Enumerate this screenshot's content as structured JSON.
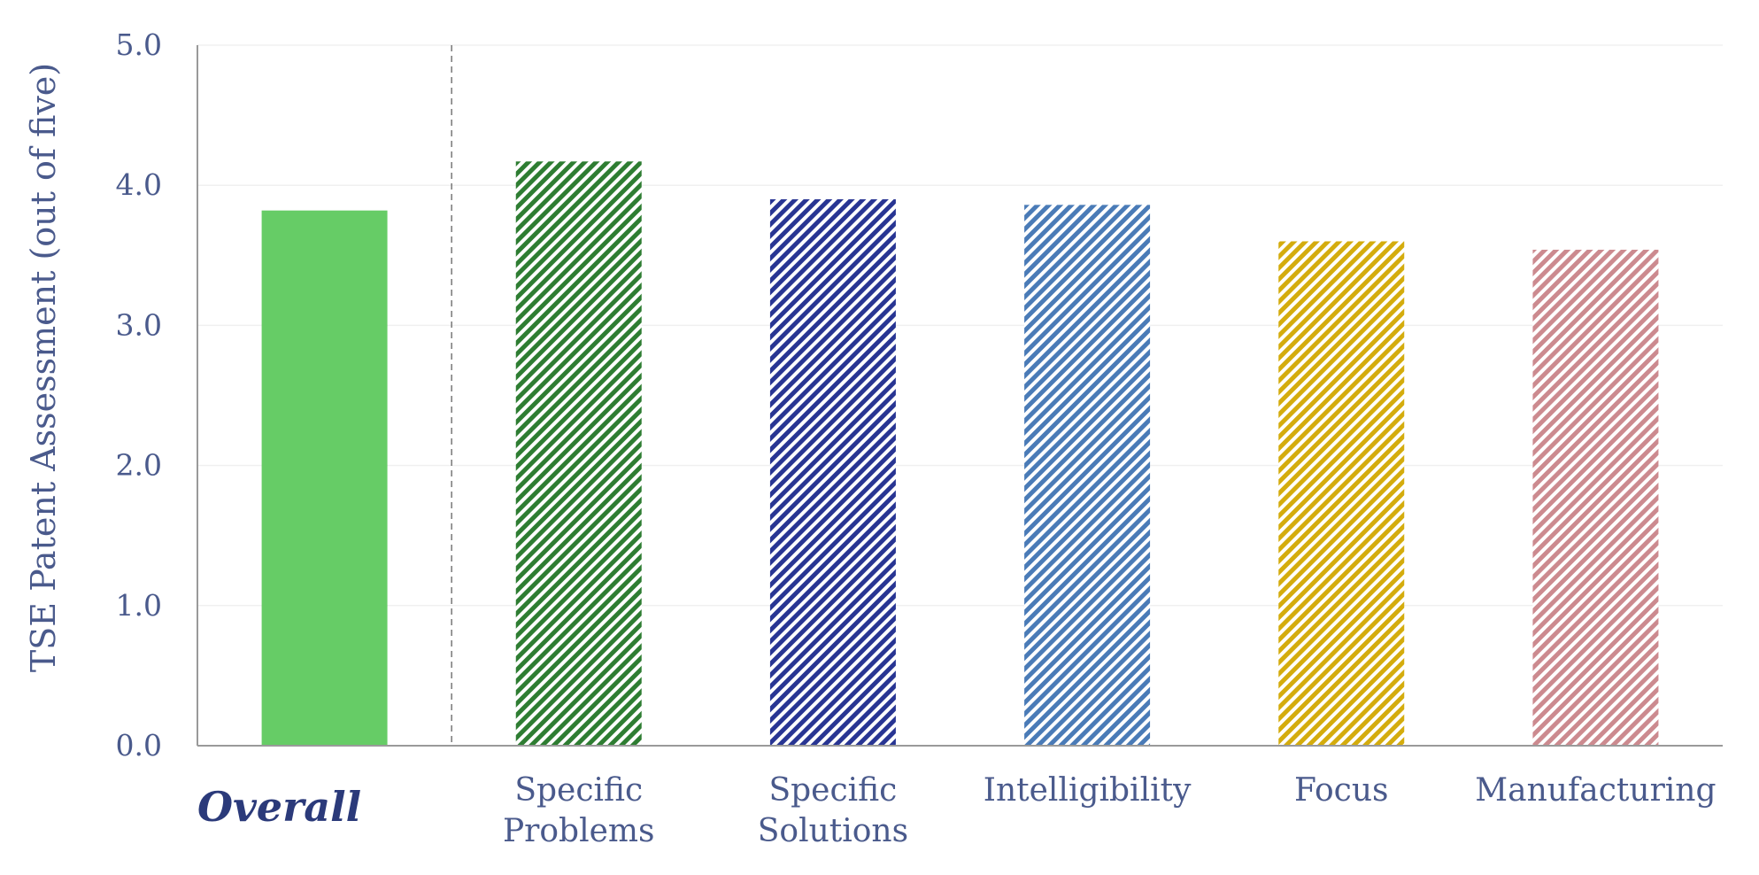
{
  "chart_data": {
    "type": "bar",
    "ylabel": "TSE Patent Assessment (out of five)",
    "xlabel": "",
    "ylim": [
      0,
      5
    ],
    "yticks": [
      "0.0",
      "1.0",
      "2.0",
      "3.0",
      "4.0",
      "5.0"
    ],
    "grid": true,
    "categories": [
      {
        "label": [
          "Overall"
        ],
        "value": 3.82,
        "color": "#66cc66",
        "fill": "solid"
      },
      {
        "label": [
          "Specific",
          "Problems"
        ],
        "value": 4.17,
        "color": "#2e7d32",
        "fill": "hatch"
      },
      {
        "label": [
          "Specific",
          "Solutions"
        ],
        "value": 3.9,
        "color": "#283593",
        "fill": "hatch"
      },
      {
        "label": [
          "Intelligibility"
        ],
        "value": 3.86,
        "color": "#4a7bb7",
        "fill": "hatch"
      },
      {
        "label": [
          "Focus"
        ],
        "value": 3.6,
        "color": "#d4ac0d",
        "fill": "hatch"
      },
      {
        "label": [
          "Manufacturing"
        ],
        "value": 3.54,
        "color": "#cc8a8f",
        "fill": "hatch"
      }
    ],
    "divider_after_category": 0
  }
}
